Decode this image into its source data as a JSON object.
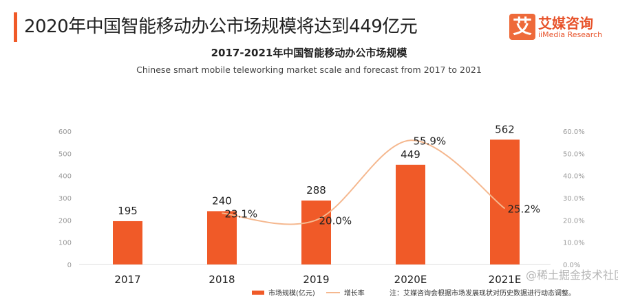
{
  "header": {
    "title": "2020年中国智能移动办公市场规模将达到449亿元",
    "logo_mark": "艾",
    "logo_cn": "艾媒咨询",
    "logo_en": "iiMedia Research"
  },
  "chart_data": {
    "type": "bar",
    "title": "2017-2021年中国智能移动办公市场规模",
    "subtitle": "Chinese smart mobile teleworking market scale and forecast from 2017 to 2021",
    "categories": [
      "2017",
      "2018",
      "2019",
      "2020E",
      "2021E"
    ],
    "series": [
      {
        "name": "市场规模(亿元)",
        "type": "bar",
        "values": [
          195,
          240,
          288,
          449,
          562
        ],
        "labels": [
          "195",
          "240",
          "288",
          "449",
          "562"
        ],
        "color": "#f05a28"
      },
      {
        "name": "增长率",
        "type": "line",
        "axis": "right",
        "values": [
          null,
          23.1,
          20.0,
          55.9,
          25.2
        ],
        "labels": [
          "",
          "23.1%",
          "20.0%",
          "55.9%",
          "25.2%"
        ],
        "color": "#f5b88f"
      }
    ],
    "ylim": [
      0,
      600
    ],
    "yticks": [
      "0",
      "100",
      "200",
      "300",
      "400",
      "500",
      "600"
    ],
    "y2lim": [
      0,
      60
    ],
    "y2ticks": [
      "0.0%",
      "10.0%",
      "20.0%",
      "30.0%",
      "40.0%",
      "50.0%",
      "60.0%"
    ],
    "legend": "bottom"
  },
  "note": "注：艾媒咨询会根据市场发展现状对历史数据进行动态调整。",
  "watermark": "@稀土掘金技术社区"
}
